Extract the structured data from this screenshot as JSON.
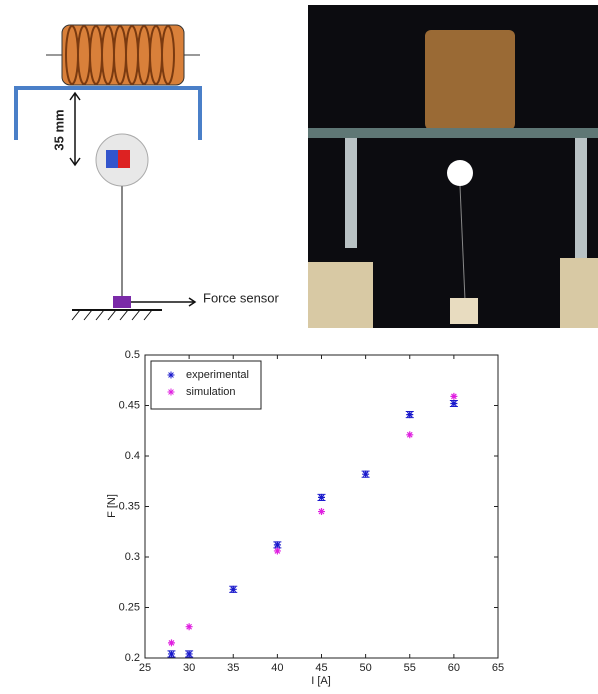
{
  "diagram": {
    "distance_label": "35 mm",
    "sensor_label": "Force sensor"
  },
  "chart_data": {
    "type": "scatter",
    "xlabel": "I [A]",
    "ylabel": "F [N]",
    "xlim": [
      25,
      65
    ],
    "xticks": [
      25,
      30,
      35,
      40,
      45,
      50,
      55,
      60,
      65
    ],
    "ylim": [
      0.2,
      0.5
    ],
    "yticks": [
      0.2,
      0.25,
      0.3,
      0.35,
      0.4,
      0.45,
      0.5
    ],
    "legend": "upper left",
    "series": [
      {
        "name": "experimental",
        "color": "#1a1acc",
        "x": [
          28,
          30,
          35,
          40,
          45,
          50,
          55,
          60
        ],
        "values": [
          0.204,
          0.204,
          0.268,
          0.312,
          0.359,
          0.382,
          0.441,
          0.452
        ],
        "errors": [
          0.003,
          0.003,
          0.003,
          0.003,
          0.003,
          0.003,
          0.003,
          0.003
        ]
      },
      {
        "name": "simulation",
        "color": "#e020e0",
        "x": [
          28,
          30,
          40,
          45,
          55,
          60
        ],
        "values": [
          0.215,
          0.231,
          0.306,
          0.345,
          0.421,
          0.459
        ]
      }
    ]
  }
}
